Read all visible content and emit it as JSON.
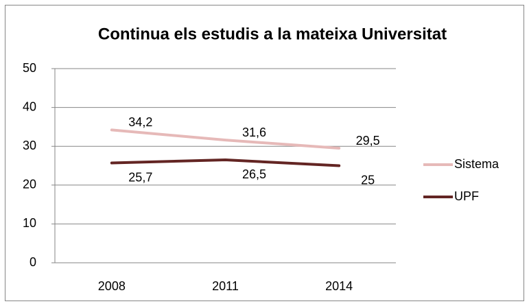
{
  "chart_data": {
    "type": "line",
    "title": "Continua els estudis a la mateixa Universitat",
    "categories": [
      "2008",
      "2011",
      "2014"
    ],
    "series": [
      {
        "name": "Sistema",
        "color": "#e6b9b8",
        "values": [
          34.2,
          31.6,
          29.5
        ],
        "value_labels": [
          "34,2",
          "31,6",
          "29,5"
        ]
      },
      {
        "name": "UPF",
        "color": "#632523",
        "values": [
          25.7,
          26.5,
          25
        ],
        "value_labels": [
          "25,7",
          "26,5",
          "25"
        ]
      }
    ],
    "ylim": [
      0,
      50
    ],
    "yticks": [
      0,
      10,
      20,
      30,
      40,
      50
    ],
    "grid": true,
    "legend": "right"
  }
}
